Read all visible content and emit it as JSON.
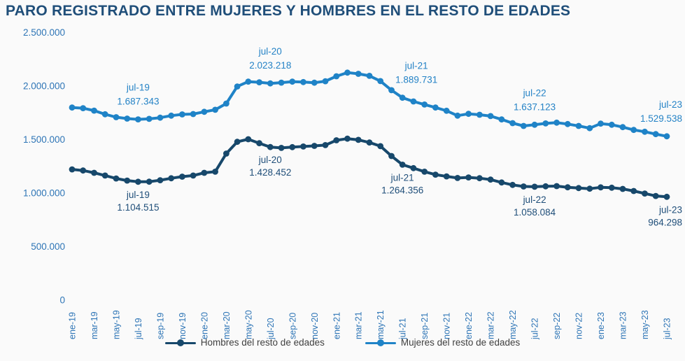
{
  "title": "PARO REGISTRADO ENTRE MUJERES Y HOMBRES EN EL RESTO DE EDADES",
  "colors": {
    "background": "#FAFAFA",
    "title": "#1F4E79",
    "axis_labels": "#2E75B6",
    "hombres": "#17486B",
    "mujeres": "#1F83C7",
    "annotation_hombres": "#1F4E79",
    "annotation_mujeres": "#2583C6",
    "legend_text": "#3F3F3F"
  },
  "legend": {
    "hombres_label": "Hombres del resto de edades",
    "mujeres_label": "Mujeres del resto de edades"
  },
  "chart_data": {
    "type": "line",
    "title": "PARO REGISTRADO ENTRE MUJERES Y HOMBRES EN EL RESTO DE EDADES",
    "xlabel": "",
    "ylabel": "",
    "ylim": [
      0,
      2500000
    ],
    "grid": false,
    "legend_position": "bottom",
    "x_tick_step": 2,
    "y_ticks": [
      {
        "value": 0,
        "label": "0"
      },
      {
        "value": 500000,
        "label": "500.000"
      },
      {
        "value": 1000000,
        "label": "1.000.000"
      },
      {
        "value": 1500000,
        "label": "1.500.000"
      },
      {
        "value": 2000000,
        "label": "2.000.000"
      },
      {
        "value": 2500000,
        "label": "2.500.000"
      }
    ],
    "categories": [
      "ene-19",
      "feb-19",
      "mar-19",
      "abr-19",
      "may-19",
      "jun-19",
      "jul-19",
      "ago-19",
      "sep-19",
      "oct-19",
      "nov-19",
      "dic-19",
      "ene-20",
      "feb-20",
      "mar-20",
      "abr-20",
      "may-20",
      "jun-20",
      "jul-20",
      "ago-20",
      "sep-20",
      "oct-20",
      "nov-20",
      "dic-20",
      "ene-21",
      "feb-21",
      "mar-21",
      "abr-21",
      "may-21",
      "jun-21",
      "jul-21",
      "ago-21",
      "sep-21",
      "oct-21",
      "nov-21",
      "dic-21",
      "ene-22",
      "feb-22",
      "mar-22",
      "abr-22",
      "may-22",
      "jun-22",
      "jul-22",
      "ago-22",
      "sep-22",
      "oct-22",
      "nov-22",
      "dic-22",
      "ene-23",
      "feb-23",
      "mar-23",
      "abr-23",
      "may-23",
      "jun-23",
      "jul-23"
    ],
    "series": [
      {
        "name": "Hombres del resto de edades",
        "color": "#17486B",
        "values": [
          1220000,
          1210000,
          1188000,
          1163000,
          1135000,
          1116000,
          1104515,
          1105000,
          1119000,
          1137000,
          1152000,
          1163000,
          1188000,
          1199000,
          1368000,
          1478000,
          1502000,
          1465000,
          1428452,
          1421000,
          1428000,
          1434000,
          1440000,
          1447000,
          1492000,
          1507000,
          1496000,
          1471000,
          1437000,
          1345000,
          1264356,
          1232000,
          1199000,
          1171000,
          1155000,
          1140000,
          1145000,
          1138000,
          1125000,
          1098000,
          1075000,
          1061000,
          1058084,
          1062000,
          1064000,
          1053000,
          1046000,
          1040000,
          1052000,
          1049000,
          1038000,
          1018000,
          995000,
          972000,
          964298
        ]
      },
      {
        "name": "Mujeres del resto de edades",
        "color": "#1F83C7",
        "values": [
          1798000,
          1792000,
          1769000,
          1735000,
          1708000,
          1695000,
          1687343,
          1692000,
          1703000,
          1722000,
          1734000,
          1737000,
          1758000,
          1777000,
          1835000,
          1995000,
          2040000,
          2034000,
          2023218,
          2031000,
          2040000,
          2036000,
          2030000,
          2044000,
          2090000,
          2124000,
          2113000,
          2094000,
          2045000,
          1960000,
          1889731,
          1855000,
          1826000,
          1798000,
          1768000,
          1722000,
          1739000,
          1731000,
          1718000,
          1687000,
          1652000,
          1626000,
          1637123,
          1650000,
          1657000,
          1644000,
          1626000,
          1605000,
          1648000,
          1637000,
          1615000,
          1589000,
          1572000,
          1550000,
          1529538
        ]
      }
    ],
    "annotations": [
      {
        "id": "muj-jul-19",
        "series": 1,
        "month": "jul-19",
        "line1": "jul-19",
        "line2": "1.687.343",
        "placement": "above"
      },
      {
        "id": "muj-jul-20",
        "series": 1,
        "month": "jul-20",
        "line1": "jul-20",
        "line2": "2.023.218",
        "placement": "above"
      },
      {
        "id": "muj-jul-21",
        "series": 1,
        "month": "jul-21",
        "line1": "jul-21",
        "line2": "1.889.731",
        "placement": "above"
      },
      {
        "id": "muj-jul-22",
        "series": 1,
        "month": "jul-22",
        "line1": "jul-22",
        "line2": "1.637.123",
        "placement": "above"
      },
      {
        "id": "muj-jul-23",
        "series": 1,
        "month": "jul-23",
        "line1": "jul-23",
        "line2": "1.529.538",
        "placement": "above"
      },
      {
        "id": "hom-jul-19",
        "series": 0,
        "month": "jul-19",
        "line1": "jul-19",
        "line2": "1.104.515",
        "placement": "below"
      },
      {
        "id": "hom-jul-20",
        "series": 0,
        "month": "jul-20",
        "line1": "jul-20",
        "line2": "1.428.452",
        "placement": "below"
      },
      {
        "id": "hom-jul-21",
        "series": 0,
        "month": "jul-21",
        "line1": "jul-21",
        "line2": "1.264.356",
        "placement": "below"
      },
      {
        "id": "hom-jul-22",
        "series": 0,
        "month": "jul-22",
        "line1": "jul-22",
        "line2": "1.058.084",
        "placement": "below"
      },
      {
        "id": "hom-jul-23",
        "series": 0,
        "month": "jul-23",
        "line1": "jul-23",
        "line2": "964.298",
        "placement": "below"
      }
    ]
  }
}
